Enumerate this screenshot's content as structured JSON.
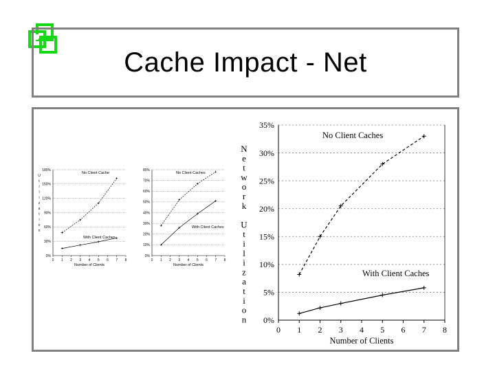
{
  "slide": {
    "title": "Cache Impact - Net",
    "logo_icon": "stacked-squares-icon",
    "accent": "#16d816"
  },
  "chart_data": [
    {
      "type": "line",
      "xlabel": "Number of Clients",
      "ylabel": "U t i l i z a t i o n",
      "x_ticks": [
        "0",
        "1",
        "2",
        "3",
        "4",
        "5",
        "6",
        "7",
        "8"
      ],
      "y_ticks": [
        "0%",
        "30%",
        "60%",
        "90%",
        "120%",
        "150%",
        "180%"
      ],
      "xlim": [
        0,
        8
      ],
      "ylim": [
        0,
        180
      ],
      "series": [
        {
          "name": "No Client Cache",
          "x": [
            1,
            3,
            5,
            7
          ],
          "y": [
            48,
            75,
            110,
            162
          ]
        },
        {
          "name": "With Client Caches",
          "x": [
            1,
            3,
            5,
            7
          ],
          "y": [
            15,
            22,
            29,
            37
          ]
        }
      ]
    },
    {
      "type": "line",
      "xlabel": "Number of Clients",
      "ylabel": "",
      "x_ticks": [
        "0",
        "1",
        "2",
        "3",
        "4",
        "5",
        "6",
        "7",
        "8"
      ],
      "y_ticks": [
        "0%",
        "10%",
        "20%",
        "30%",
        "40%",
        "50%",
        "60%",
        "70%",
        "80%"
      ],
      "xlim": [
        0,
        8
      ],
      "ylim": [
        0,
        80
      ],
      "series": [
        {
          "name": "No Client Caches",
          "x": [
            1,
            3,
            5,
            7
          ],
          "y": [
            28,
            52,
            67,
            78
          ]
        },
        {
          "name": "With Client Caches",
          "x": [
            1,
            3,
            5,
            7
          ],
          "y": [
            10,
            26,
            39,
            51
          ]
        }
      ]
    },
    {
      "type": "line",
      "xlabel": "Number of Clients",
      "ylabel": "Network Utilization",
      "ylabel_letters": [
        "N",
        "e",
        "t",
        "w",
        "o",
        "r",
        "k",
        "",
        "U",
        "t",
        "i",
        "l",
        "i",
        "z",
        "a",
        "t",
        "i",
        "o",
        "n"
      ],
      "x_ticks": [
        "0",
        "1",
        "2",
        "3",
        "4",
        "5",
        "6",
        "7",
        "8"
      ],
      "y_ticks": [
        "0%",
        "5%",
        "10%",
        "15%",
        "20%",
        "25%",
        "30%",
        "35%"
      ],
      "xlim": [
        0,
        8
      ],
      "ylim": [
        0,
        35
      ],
      "grid": true,
      "series": [
        {
          "name": "No Client Caches",
          "x": [
            1,
            2,
            3,
            5,
            7
          ],
          "y": [
            8.2,
            15.0,
            20.5,
            28.0,
            33.0
          ]
        },
        {
          "name": "With Client Caches",
          "x": [
            1,
            2,
            3,
            5,
            7
          ],
          "y": [
            1.2,
            2.2,
            3.0,
            4.5,
            5.8
          ]
        }
      ]
    }
  ]
}
